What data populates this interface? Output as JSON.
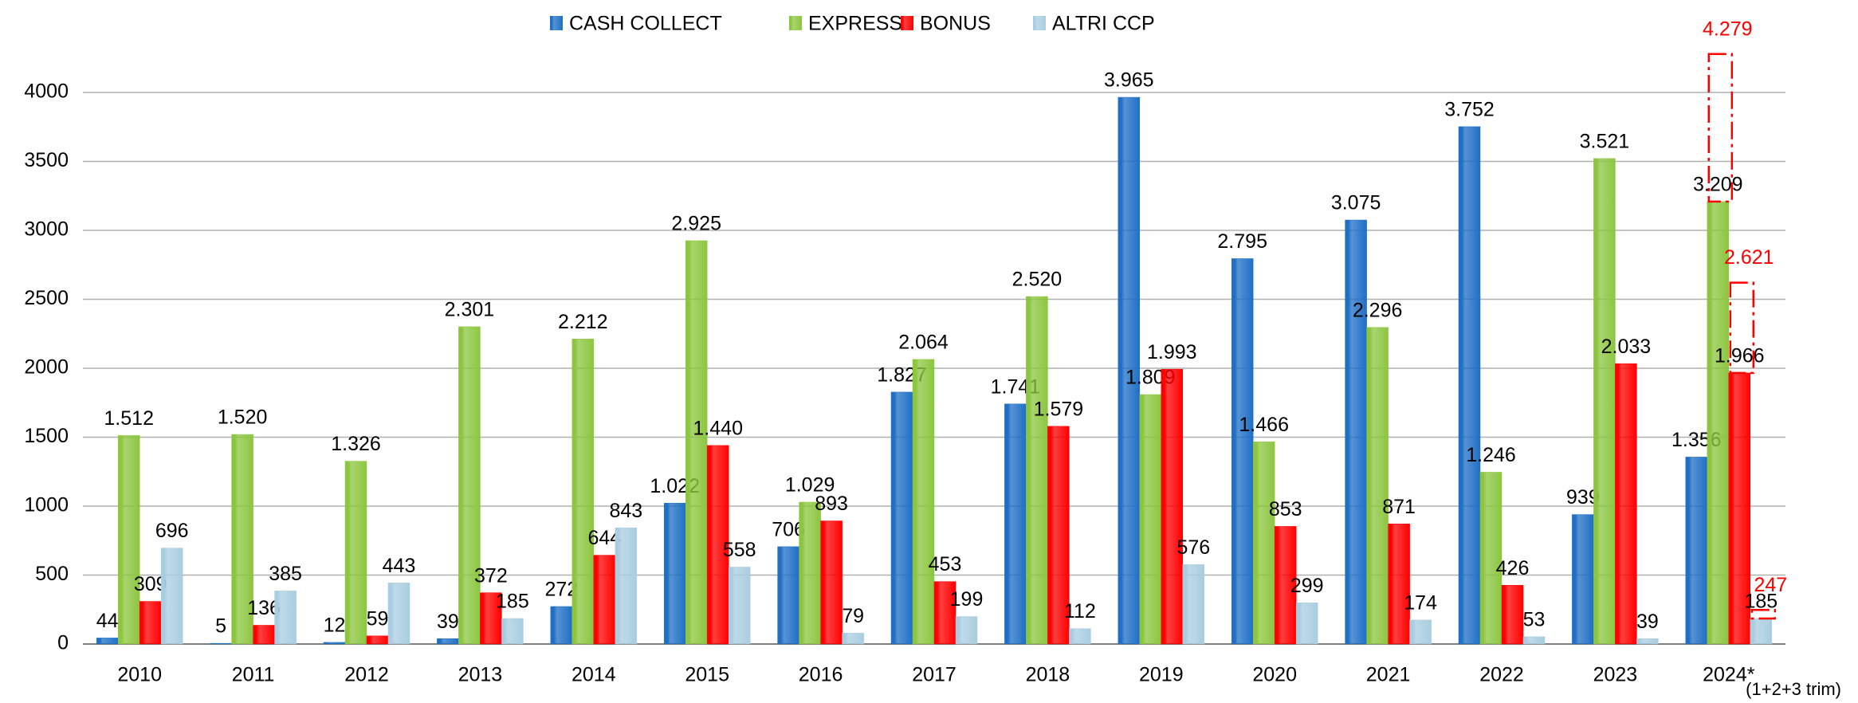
{
  "chart_data": {
    "type": "bar",
    "categories": [
      "2010",
      "2011",
      "2012",
      "2013",
      "2014",
      "2015",
      "2016",
      "2017",
      "2018",
      "2019",
      "2020",
      "2021",
      "2022",
      "2023",
      "2024*"
    ],
    "series": [
      {
        "name": "CASH COLLECT",
        "color": "#1f6fc5",
        "values": [
          44,
          5,
          12,
          39,
          272,
          1022,
          706,
          1827,
          1741,
          3965,
          2795,
          3075,
          3752,
          939,
          1356
        ],
        "value_labels": [
          "44",
          "5",
          "12",
          "39",
          "272",
          "1.022",
          "706",
          "1.827",
          "1.741",
          "3.965",
          "2.795",
          "3.075",
          "3.752",
          "939",
          "1.356"
        ]
      },
      {
        "name": "EXPRESS",
        "color": "#8cc63f",
        "values": [
          1512,
          1520,
          1326,
          2301,
          2212,
          2925,
          1029,
          2064,
          2520,
          1809,
          1466,
          2296,
          1246,
          3521,
          3209
        ],
        "value_labels": [
          "1.512",
          "1.520",
          "1.326",
          "2.301",
          "2.212",
          "2.925",
          "1.029",
          "2.064",
          "2.520",
          "1.809",
          "1.466",
          "2.296",
          "1.246",
          "3.521",
          "3.209"
        ],
        "projection": {
          "value": 4279,
          "label": "4.279"
        }
      },
      {
        "name": "BONUS",
        "color": "#ff0000",
        "values": [
          309,
          136,
          59,
          372,
          644,
          1440,
          893,
          453,
          1579,
          1993,
          853,
          871,
          426,
          2033,
          1966
        ],
        "value_labels": [
          "309",
          "136",
          "59",
          "372",
          "644",
          "1.440",
          "893",
          "453",
          "1.579",
          "1.993",
          "853",
          "871",
          "426",
          "2.033",
          "1.966"
        ],
        "projection": {
          "value": 2621,
          "label": "2.621"
        }
      },
      {
        "name": "ALTRI CCP",
        "color": "#a9cde0",
        "values": [
          696,
          385,
          443,
          185,
          843,
          558,
          79,
          199,
          112,
          576,
          299,
          174,
          53,
          39,
          185
        ],
        "value_labels": [
          "696",
          "385",
          "443",
          "185",
          "843",
          "558",
          "79",
          "199",
          "112",
          "576",
          "299",
          "174",
          "53",
          "39",
          "185"
        ],
        "projection": {
          "value": 247,
          "label": "247"
        }
      }
    ],
    "annotation": "(1+2+3 trim)",
    "ylim": [
      0,
      4000
    ],
    "yticks": [
      0,
      500,
      1000,
      1500,
      2000,
      2500,
      3000,
      3500,
      4000
    ],
    "grid": true,
    "legend": "top"
  }
}
